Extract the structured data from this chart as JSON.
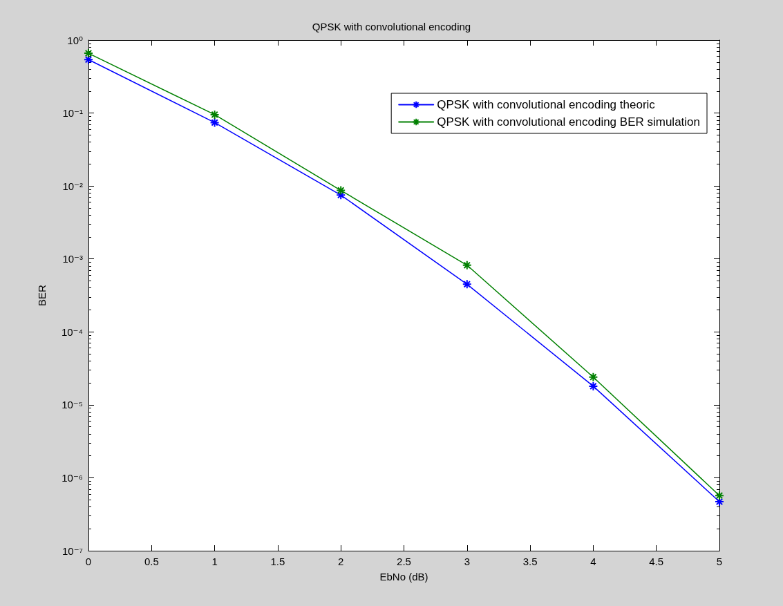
{
  "chart_data": {
    "type": "line",
    "title": "QPSK with convolutional encoding",
    "xlabel": "EbNo (dB)",
    "ylabel": "BER",
    "x": [
      0,
      1,
      2,
      3,
      4,
      5
    ],
    "series": [
      {
        "name": "QPSK with convolutional encoding theoric",
        "color": "#0000ff",
        "values": [
          0.54,
          0.074,
          0.0075,
          0.00045,
          1.8e-05,
          4.7e-07
        ]
      },
      {
        "name": "QPSK with convolutional encoding BER simulation",
        "color": "#008000",
        "values": [
          0.66,
          0.095,
          0.0087,
          0.00082,
          2.4e-05,
          5.7e-07
        ]
      }
    ],
    "log": "y",
    "xlim": [
      0,
      5
    ],
    "xticks": [
      0,
      0.5,
      1,
      1.5,
      2,
      2.5,
      3,
      3.5,
      4,
      4.5,
      5
    ],
    "ylim": [
      1e-07,
      1
    ],
    "yticks": [
      {
        "value": 1e-07,
        "label": "10⁻⁷"
      },
      {
        "value": 1e-06,
        "label": "10⁻⁶"
      },
      {
        "value": 1e-05,
        "label": "10⁻⁵"
      },
      {
        "value": 0.0001,
        "label": "10⁻⁴"
      },
      {
        "value": 0.001,
        "label": "10⁻³"
      },
      {
        "value": 0.01,
        "label": "10⁻²"
      },
      {
        "value": 0.1,
        "label": "10⁻¹"
      },
      {
        "value": 1,
        "label": "10⁰"
      }
    ],
    "grid": false,
    "legend": "top right",
    "marker": "cross",
    "line_style": "solid"
  }
}
